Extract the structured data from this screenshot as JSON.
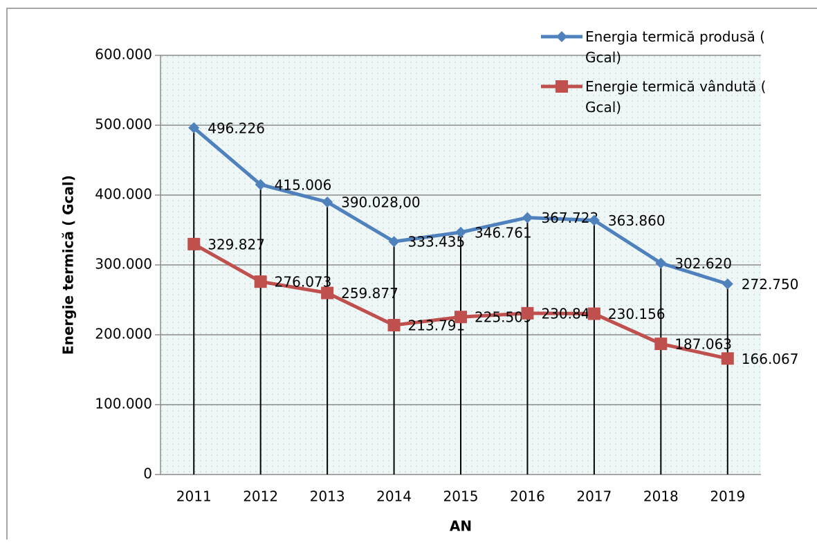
{
  "chart_data": {
    "type": "line",
    "x_label": "AN",
    "y_label": "Energie termică ( Gcal)",
    "categories": [
      "2011",
      "2012",
      "2013",
      "2014",
      "2015",
      "2016",
      "2017",
      "2018",
      "2019"
    ],
    "series": [
      {
        "name": "Energia termică produsă ( Gcal)",
        "color": "#4f81bd",
        "marker": "diamond",
        "values": [
          496226,
          415006,
          390028,
          333435,
          346761,
          367723,
          363860,
          302620,
          272750
        ],
        "value_labels": [
          "496.226",
          "415.006",
          "390.028,00",
          "333.435",
          "346.761",
          "367.723",
          "363.860",
          "302.620",
          "272.750"
        ]
      },
      {
        "name": "Energie termică vândută ( Gcal)",
        "color": "#c0504d",
        "marker": "square",
        "values": [
          329827,
          276073,
          259877,
          213791,
          225509,
          230845,
          230156,
          187063,
          166067
        ],
        "value_labels": [
          "329.827",
          "276.073",
          "259.877",
          "213.791",
          "225.509",
          "230.845",
          "230.156",
          "187.063",
          "166.067"
        ]
      }
    ],
    "ylim": [
      0,
      600000
    ],
    "yticks": [
      0,
      {
        "value": 100000,
        "label": "100.000"
      },
      {
        "value": 200000,
        "label": "200.000"
      },
      {
        "value": 300000,
        "label": "300.000"
      },
      {
        "value": 400000,
        "label": "400.000"
      },
      {
        "value": 500000,
        "label": "500.000"
      },
      {
        "value": 600000,
        "label": "600.000"
      }
    ],
    "grid": true,
    "drop_lines": true,
    "legend": "top-right"
  }
}
